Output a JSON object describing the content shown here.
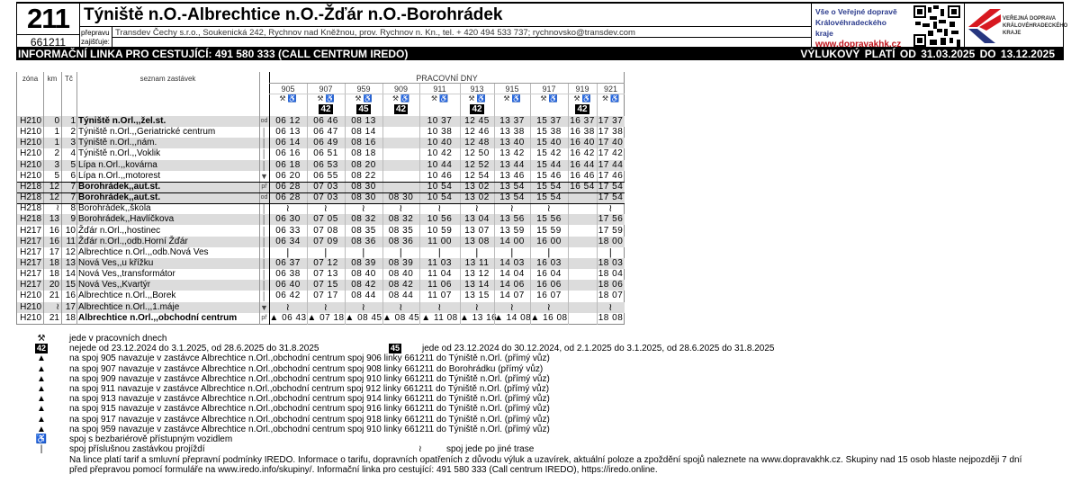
{
  "header": {
    "line_number": "211",
    "line_code": "661211",
    "title": "Týniště n.O.-Albrechtice n.O.-Žďár n.O.-Borohrádek",
    "operator_label": "přepravu zajišťuje:",
    "operator_text": "Transdev Čechy s.r.o., Soukenická 242, Rychnov nad Kněžnou, prov. Rychnov n. Kn., tel. + 420 494 533 737; rychnovsko@transdev.com",
    "info_line1": "Vše o Veřejné dopravě",
    "info_line2": "Královéhradeckého kraje",
    "info_web": "www.dopravakhk.cz",
    "logo_text": "VEŘEJNÁ DOPRAVA KRÁLOVÉHRADECKÉHO KRAJE",
    "logo_colors": {
      "red": "#d71920",
      "blue": "#27367f"
    }
  },
  "bar": {
    "left": "INFORMAČNÍ LINKA PRO CESTUJÍCÍ: 491 580 333 (CALL CENTRUM IREDO)",
    "right": "VÝLUKOVÝ   PLATÍ OD 31.03.2025  DO 13.12.2025"
  },
  "table": {
    "headers": {
      "zone": "zóna",
      "km": "km",
      "tc": "Tč",
      "stops": "seznam zastávek",
      "days": "PRACOVNÍ DNY"
    },
    "trips": [
      {
        "no": "905",
        "icons": "⚒ ♿",
        "badge": ""
      },
      {
        "no": "907",
        "icons": "⚒ ♿",
        "badge": "42"
      },
      {
        "no": "959",
        "icons": "⚒ ♿",
        "badge": "45"
      },
      {
        "no": "909",
        "icons": "⚒ ♿",
        "badge": "42"
      },
      {
        "no": "911",
        "icons": "⚒ ♿",
        "badge": ""
      },
      {
        "no": "913",
        "icons": "⚒ ♿",
        "badge": "42"
      },
      {
        "no": "915",
        "icons": "⚒ ♿",
        "badge": ""
      },
      {
        "no": "917",
        "icons": "⚒ ♿",
        "badge": ""
      },
      {
        "no": "919",
        "icons": "⚒ ♿",
        "badge": "42"
      },
      {
        "no": "921",
        "icons": "⚒ ♿",
        "badge": ""
      }
    ],
    "rows": [
      {
        "zone": "H210",
        "km": "0",
        "tc": "1",
        "stop": "Týniště n.Orl.,,žel.st.",
        "bold": true,
        "mark": "od",
        "times": [
          "06 12",
          "06 46",
          "08 13",
          "",
          "10 37",
          "12 45",
          "13 37",
          "15 37",
          "16 37",
          "17 37"
        ]
      },
      {
        "zone": "H210",
        "km": "1",
        "tc": "2",
        "stop": "Týniště n.Orl.,,Geriatrické centrum",
        "mark": "│",
        "times": [
          "06 13",
          "06 47",
          "08 14",
          "",
          "10 38",
          "12 46",
          "13 38",
          "15 38",
          "16 38",
          "17 38"
        ]
      },
      {
        "zone": "H210",
        "km": "1",
        "tc": "3",
        "stop": "Týniště n.Orl.,,nám.",
        "mark": "│",
        "times": [
          "06 14",
          "06 49",
          "08 16",
          "",
          "10 40",
          "12 48",
          "13 40",
          "15 40",
          "16 40",
          "17 40"
        ]
      },
      {
        "zone": "H210",
        "km": "2",
        "tc": "4",
        "stop": "Týniště n.Orl.,,Voklik",
        "mark": "│",
        "times": [
          "06 16",
          "06 51",
          "08 18",
          "",
          "10 42",
          "12 50",
          "13 42",
          "15 42",
          "16 42",
          "17 42"
        ]
      },
      {
        "zone": "H210",
        "km": "3",
        "tc": "5",
        "stop": "Lípa n.Orl.,,kovárna",
        "mark": "│",
        "times": [
          "06 18",
          "06 53",
          "08 20",
          "",
          "10 44",
          "12 52",
          "13 44",
          "15 44",
          "16 44",
          "17 44"
        ]
      },
      {
        "zone": "H210",
        "km": "5",
        "tc": "6",
        "stop": "Lípa n.Orl.,,motorest",
        "mark": "▼",
        "times": [
          "06 20",
          "06 55",
          "08 22",
          "",
          "10 46",
          "12 54",
          "13 46",
          "15 46",
          "16 46",
          "17 46"
        ]
      },
      {
        "zone": "H218",
        "km": "12",
        "tc": "7",
        "stop": "Borohrádek,,aut.st.",
        "bold": true,
        "mark": "př",
        "times": [
          "06 28",
          "07 03",
          "08 30",
          "",
          "10 54",
          "13 02",
          "13 54",
          "15 54",
          "16 54",
          "17 54"
        ]
      },
      {
        "zone": "H218",
        "km": "12",
        "tc": "7",
        "stop": "Borohrádek,,aut.st.",
        "bold": true,
        "mark": "od",
        "times": [
          "06 28",
          "07 03",
          "08 30",
          "08 30",
          "10 54",
          "13 02",
          "13 54",
          "15 54",
          "",
          "17 54"
        ]
      },
      {
        "zone": "H218",
        "km": "≀",
        "tc": "8",
        "stop": "Borohrádek,,škola",
        "mark": "│",
        "times": [
          "≀",
          "≀",
          "≀",
          "≀",
          "≀",
          "≀",
          "≀",
          "≀",
          "",
          "≀"
        ]
      },
      {
        "zone": "H218",
        "km": "13",
        "tc": "9",
        "stop": "Borohrádek,,Havlíčkova",
        "mark": "│",
        "times": [
          "06 30",
          "07 05",
          "08 32",
          "08 32",
          "10 56",
          "13 04",
          "13 56",
          "15 56",
          "",
          "17 56"
        ]
      },
      {
        "zone": "H217",
        "km": "16",
        "tc": "10",
        "stop": "Žďár n.Orl.,,hostinec",
        "mark": "│",
        "times": [
          "06 33",
          "07 08",
          "08 35",
          "08 35",
          "10 59",
          "13 07",
          "13 59",
          "15 59",
          "",
          "17 59"
        ]
      },
      {
        "zone": "H217",
        "km": "16",
        "tc": "11",
        "stop": "Žďár n.Orl.,,odb.Horní Žďár",
        "mark": "│",
        "times": [
          "06 34",
          "07 09",
          "08 36",
          "08 36",
          "11 00",
          "13 08",
          "14 00",
          "16 00",
          "",
          "18 00"
        ]
      },
      {
        "zone": "H217",
        "km": "17",
        "tc": "12",
        "stop": "Albrechtice n.Orl.,,odb.Nová Ves",
        "mark": "│",
        "times": [
          "|",
          "|",
          "|",
          "|",
          "|",
          "|",
          "|",
          "|",
          "",
          "|"
        ]
      },
      {
        "zone": "H217",
        "km": "18",
        "tc": "13",
        "stop": "Nová Ves,,u křížku",
        "mark": "│",
        "times": [
          "06 37",
          "07 12",
          "08 39",
          "08 39",
          "11 03",
          "13 11",
          "14 03",
          "16 03",
          "",
          "18 03"
        ]
      },
      {
        "zone": "H217",
        "km": "18",
        "tc": "14",
        "stop": "Nová Ves,,transformátor",
        "mark": "│",
        "times": [
          "06 38",
          "07 13",
          "08 40",
          "08 40",
          "11 04",
          "13 12",
          "14 04",
          "16 04",
          "",
          "18 04"
        ]
      },
      {
        "zone": "H217",
        "km": "20",
        "tc": "15",
        "stop": "Nová Ves,,Kvartýr",
        "mark": "│",
        "times": [
          "06 40",
          "07 15",
          "08 42",
          "08 42",
          "11 06",
          "13 14",
          "14 06",
          "16 06",
          "",
          "18 06"
        ]
      },
      {
        "zone": "H210",
        "km": "21",
        "tc": "16",
        "stop": "Albrechtice n.Orl.,,Borek",
        "mark": "│",
        "times": [
          "06 42",
          "07 17",
          "08 44",
          "08 44",
          "11 07",
          "13 15",
          "14 07",
          "16 07",
          "",
          "18 07"
        ]
      },
      {
        "zone": "H210",
        "km": "≀",
        "tc": "17",
        "stop": "Albrechtice n.Orl.,,1.máje",
        "mark": "▼",
        "times": [
          "≀",
          "≀",
          "≀",
          "≀",
          "≀",
          "≀",
          "≀",
          "≀",
          "",
          "≀"
        ]
      },
      {
        "zone": "H210",
        "km": "21",
        "tc": "18",
        "stop": "Albrechtice n.Orl.,,obchodní centrum",
        "bold": true,
        "mark": "př",
        "times": [
          "▲ 06 43",
          "▲ 07 18",
          "▲ 08 45",
          "▲ 08 45",
          "▲ 11 08",
          "▲ 13 16",
          "▲ 14 08",
          "▲ 16 08",
          "",
          "18 08"
        ]
      }
    ]
  },
  "footnotes": [
    {
      "symbol": "⚒",
      "text": "jede v pracovních dnech"
    },
    {
      "symbol": "42",
      "badge": true,
      "text": "nejede od 23.12.2024 do 3.1.2025, od 28.6.2025 do 31.8.2025"
    },
    {
      "symbol": "▲",
      "text": "na spoj 905 navazuje v zastávce Albrechtice n.Orl.,obchodní centrum  spoj 906 linky 661211 do Týniště n.Orl. (přímý vůz)"
    },
    {
      "symbol": "▲",
      "text": "na spoj 907 navazuje v zastávce Albrechtice n.Orl.,obchodní centrum  spoj 908 linky 661211 do Borohrádku (přímý vůz)"
    },
    {
      "symbol": "▲",
      "text": "na spoj 909 navazuje v zastávce Albrechtice n.Orl.,obchodní centrum  spoj 910 linky 661211 do Týniště n.Orl. (přímý vůz)"
    },
    {
      "symbol": "▲",
      "text": "na spoj 911 navazuje v zastávce Albrechtice n.Orl.,obchodní centrum  spoj 912 linky 661211 do Týniště n.Orl. (přímý vůz)"
    },
    {
      "symbol": "▲",
      "text": "na spoj 913 navazuje v zastávce Albrechtice n.Orl.,obchodní centrum  spoj 914 linky 661211 do Týniště n.Orl. (přímý vůz)"
    },
    {
      "symbol": "▲",
      "text": "na spoj 915 navazuje v zastávce Albrechtice n.Orl.,obchodní centrum  spoj 916 linky 661211 do Týniště n.Orl. (přímý vůz)"
    },
    {
      "symbol": "▲",
      "text": "na spoj 917 navazuje v zastávce Albrechtice n.Orl.,obchodní centrum  spoj 918 linky 661211 do Týniště n.Orl. (přímý vůz)"
    },
    {
      "symbol": "▲",
      "text": "na spoj 959 navazuje v zastávce Albrechtice n.Orl.,obchodní centrum  spoj 910 linky 661211 do Týniště n.Orl. (přímý vůz)"
    },
    {
      "symbol": "♿",
      "text": "spoj  s bezbariérově přístupným vozidlem"
    },
    {
      "symbol": "|",
      "text": "spoj příslušnou zastávkou projíždí"
    }
  ],
  "footnote_45": {
    "symbol": "45",
    "text": "jede od 23.12.2024 do 30.12.2024, od 2.1.2025 do 3.1.2025, od 28.6.2025 do 31.8.2025"
  },
  "footnote_skip": {
    "symbol": "≀",
    "text": "spoj jede po jiné trase"
  },
  "footer_text": [
    "Na lince platí tarif a smluvní přepravní podmínky IREDO. Informace o tarifu, dopravních opatřeních z důvodu výluk a uzavírek, aktuální poloze a zpoždění spojů naleznete na www.dopravakhk.cz. Skupiny nad 15 osob hlaste nejpozději 7 dní",
    "před přepravou pomocí formuláře na www.iredo.info/skupiny/. Informační linka pro cestující: 491 580 333 (Call centrum IREDO), https://iredo.online."
  ]
}
